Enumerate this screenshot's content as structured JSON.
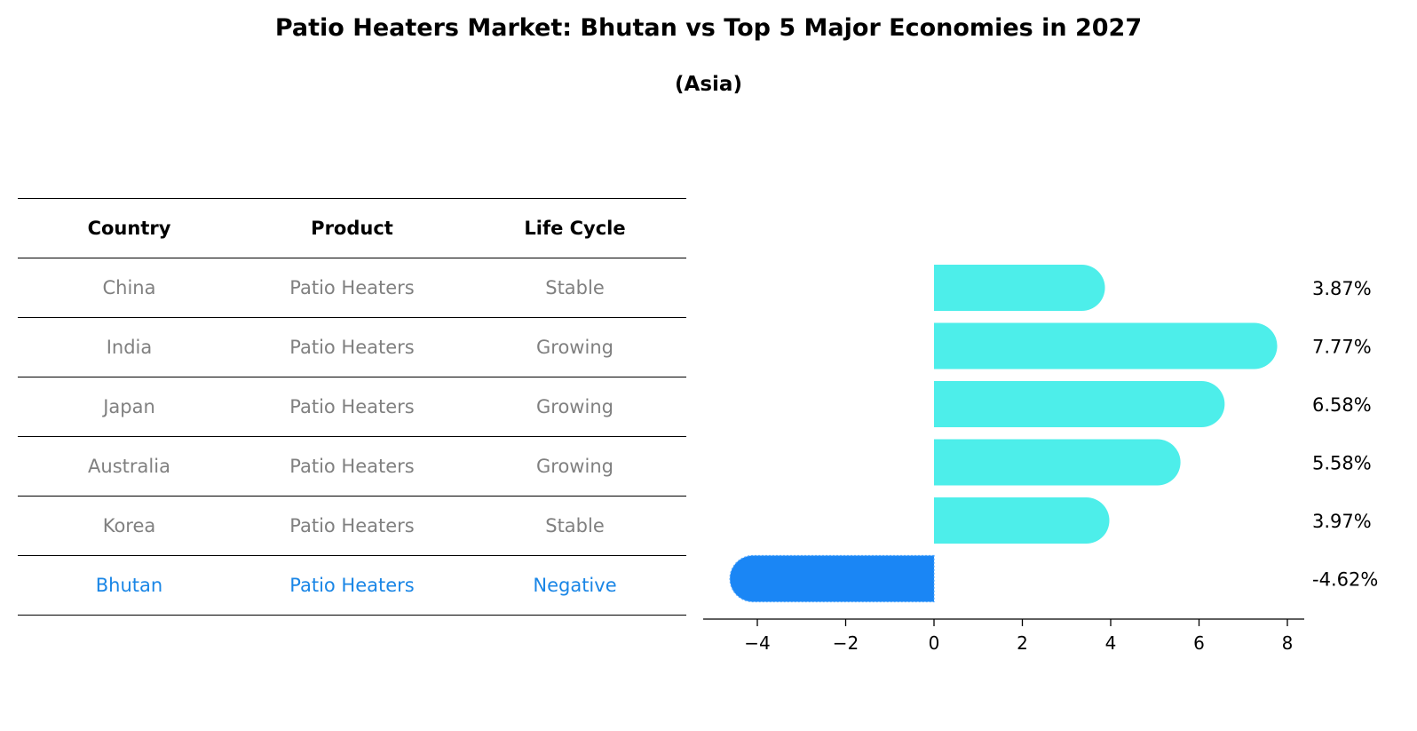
{
  "chart_data": {
    "type": "bar",
    "orientation": "horizontal",
    "title": "Patio Heaters Market: Bhutan vs Top 5 Major Economies in 2027",
    "subtitle": "(Asia)",
    "table": {
      "columns": [
        "Country",
        "Product",
        "Life Cycle"
      ],
      "rows": [
        {
          "country": "China",
          "product": "Patio Heaters",
          "life_cycle": "Stable"
        },
        {
          "country": "India",
          "product": "Patio Heaters",
          "life_cycle": "Growing"
        },
        {
          "country": "Japan",
          "product": "Patio Heaters",
          "life_cycle": "Growing"
        },
        {
          "country": "Australia",
          "product": "Patio Heaters",
          "life_cycle": "Growing"
        },
        {
          "country": "Korea",
          "product": "Patio Heaters",
          "life_cycle": "Stable"
        },
        {
          "country": "Bhutan",
          "product": "Patio Heaters",
          "life_cycle": "Negative",
          "highlight": true
        }
      ]
    },
    "categories": [
      "China",
      "India",
      "Japan",
      "Australia",
      "Korea",
      "Bhutan"
    ],
    "values": [
      3.87,
      7.77,
      6.58,
      5.58,
      3.97,
      -4.62
    ],
    "value_labels": [
      "3.87%",
      "7.77%",
      "6.58%",
      "5.58%",
      "3.97%",
      "-4.62%"
    ],
    "xlim": [
      -5.2,
      8.4
    ],
    "xticks": [
      -4,
      -2,
      0,
      2,
      4,
      6,
      8
    ],
    "xtick_labels": [
      "−4",
      "−2",
      "0",
      "2",
      "4",
      "6",
      "8"
    ],
    "colors": {
      "default": "#4deeea",
      "highlight": "#1a86f5",
      "highlight_text": "#1a86e6",
      "muted_text": "#808080"
    }
  }
}
